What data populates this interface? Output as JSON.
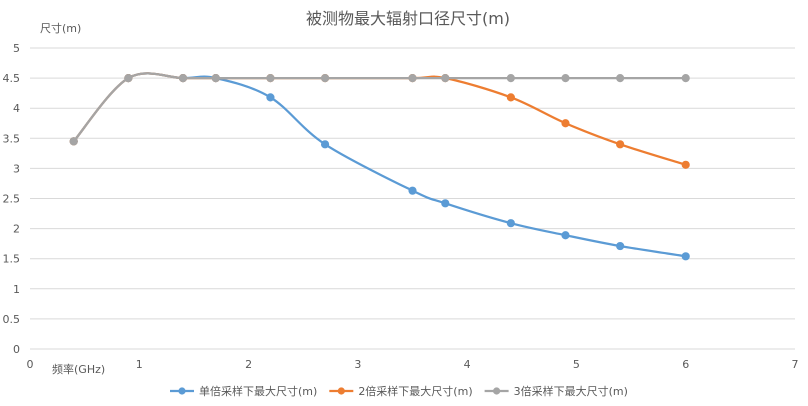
{
  "chart_data": {
    "type": "scatter",
    "title": "被测物最大辐射口径尺寸(m)",
    "xlabel": "频率(GHz)",
    "ylabel": "尺寸(m)",
    "xlim": [
      0,
      7
    ],
    "ylim": [
      0,
      5
    ],
    "x_ticks": [
      "0",
      "1",
      "2",
      "3",
      "4",
      "5",
      "6",
      "7"
    ],
    "y_ticks": [
      "0",
      "0.5",
      "1",
      "1.5",
      "2",
      "2.5",
      "3",
      "3.5",
      "4",
      "4.5",
      "5"
    ],
    "grid": true,
    "smooth": true,
    "legend_position": "bottom",
    "series": [
      {
        "name": "单倍采样下最大尺寸(m)",
        "color": "#5b9bd5",
        "x": [
          0.4,
          0.9,
          1.4,
          1.7,
          2.2,
          2.7,
          3.5,
          3.8,
          4.4,
          4.9,
          5.4,
          6.0
        ],
        "y": [
          3.45,
          4.5,
          4.5,
          4.5,
          4.18,
          3.4,
          2.63,
          2.42,
          2.09,
          1.89,
          1.71,
          1.54
        ]
      },
      {
        "name": "2倍采样下最大尺寸(m)",
        "color": "#ed7d31",
        "x": [
          0.4,
          0.9,
          1.4,
          1.7,
          2.2,
          2.7,
          3.5,
          3.8,
          4.4,
          4.9,
          5.4,
          6.0
        ],
        "y": [
          3.45,
          4.5,
          4.5,
          4.5,
          4.5,
          4.5,
          4.5,
          4.5,
          4.18,
          3.75,
          3.4,
          3.06
        ]
      },
      {
        "name": "3倍采样下最大尺寸(m)",
        "color": "#a5a5a5",
        "x": [
          0.4,
          0.9,
          1.4,
          1.7,
          2.2,
          2.7,
          3.5,
          3.8,
          4.4,
          4.9,
          5.4,
          6.0
        ],
        "y": [
          3.45,
          4.5,
          4.5,
          4.5,
          4.5,
          4.5,
          4.5,
          4.5,
          4.5,
          4.5,
          4.5,
          4.5
        ]
      }
    ]
  }
}
